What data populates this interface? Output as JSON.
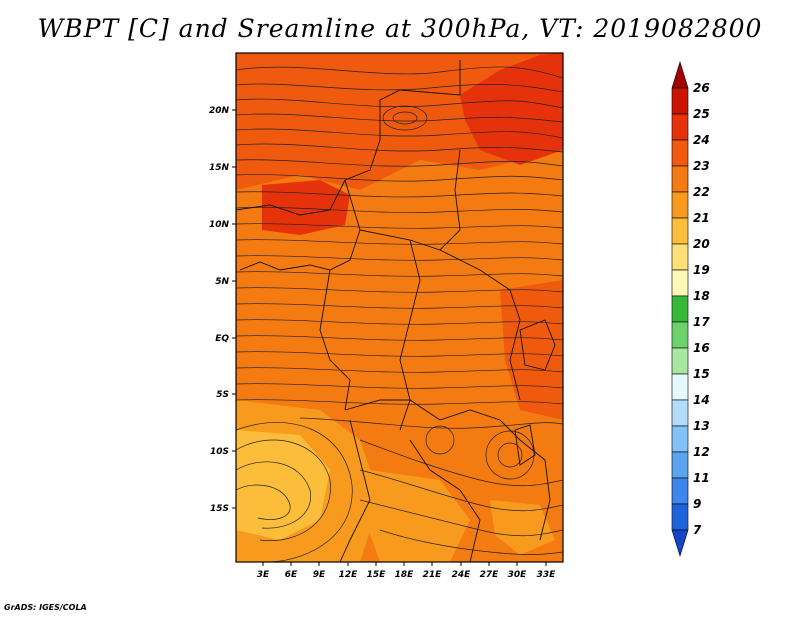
{
  "title": "WBPT [C] and Sreamline at 300hPa, VT: 2019082800",
  "credit": "GrADS: IGES/COLA",
  "map": {
    "lat_ticks": [
      "20N",
      "15N",
      "10N",
      "5N",
      "EQ",
      "5S",
      "10S",
      "15S"
    ],
    "lon_ticks": [
      "3E",
      "6E",
      "9E",
      "12E",
      "15E",
      "18E",
      "21E",
      "24E",
      "27E",
      "30E",
      "33E"
    ],
    "field": "WBPT [C]",
    "level": "300hPa"
  },
  "colorbar": {
    "labels": [
      "26",
      "25",
      "24",
      "23",
      "22",
      "21",
      "20",
      "19",
      "18",
      "17",
      "16",
      "15",
      "14",
      "13",
      "12",
      "11",
      "9",
      "7"
    ],
    "colors": [
      "#a50000",
      "#c81400",
      "#e6320a",
      "#f05a0f",
      "#f47a12",
      "#f89a1e",
      "#fbbd3a",
      "#fddf78",
      "#fef8b8",
      "#38b838",
      "#6cd26c",
      "#a8e8a0",
      "#e6f8ff",
      "#b4dcfa",
      "#82c0f5",
      "#5aa5f0",
      "#3c87eb",
      "#1e64dc",
      "#1446c8"
    ]
  },
  "legend_colors": {
    "c20": "#fbbd3a",
    "c21": "#f89a1e",
    "c22": "#f47a12",
    "c23": "#f05a0f",
    "c24": "#e6320a"
  }
}
